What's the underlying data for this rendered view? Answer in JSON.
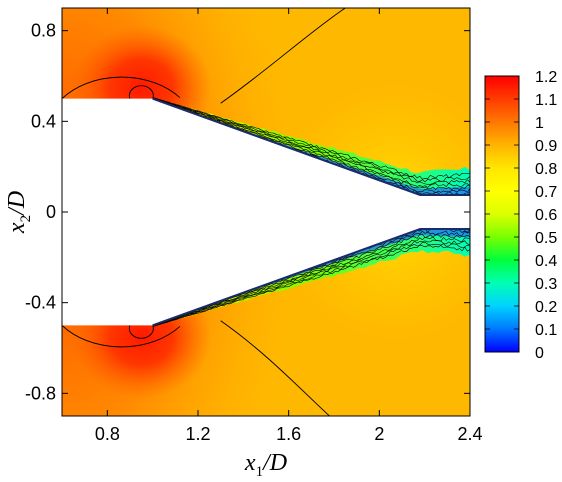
{
  "chart_data": {
    "type": "heatmap",
    "title": "",
    "xlabel": {
      "var": "x",
      "sub": "1",
      "tail": "/D"
    },
    "ylabel": {
      "var": "x",
      "sub": "2",
      "tail": "/D"
    },
    "xlim": [
      0.6,
      2.4
    ],
    "ylim": [
      -0.9,
      0.9
    ],
    "xticks": [
      0.8,
      1.2,
      1.6,
      2.0,
      2.4
    ],
    "xtick_labels": [
      "0.8",
      "1.2",
      "1.6",
      "2",
      "2.4"
    ],
    "yticks": [
      0.8,
      0.4,
      0.0,
      -0.4,
      -0.8
    ],
    "ytick_labels": [
      "0.8",
      "0.4",
      "0",
      "-0.4",
      "-0.8"
    ],
    "colorbar": {
      "min": 0,
      "max": 1.2,
      "levels": [
        "1.2",
        "1.1",
        "1",
        "0.9",
        "0.8",
        "0.7",
        "0.6",
        "0.5",
        "0.4",
        "0.3",
        "0.2",
        "0.1",
        "0"
      ],
      "colormap": [
        "#0000ff",
        "#0078ff",
        "#00d2ff",
        "#00ffb4",
        "#00ff3c",
        "#78ff00",
        "#dcff00",
        "#ffff00",
        "#ffe600",
        "#ffb400",
        "#ff7800",
        "#ff3c00",
        "#ff0000"
      ]
    },
    "solid_body": {
      "upper": [
        [
          0.6,
          0.5
        ],
        [
          1.0,
          0.5
        ],
        [
          2.18,
          0.075
        ],
        [
          2.4,
          0.075
        ]
      ],
      "lower": [
        [
          0.6,
          -0.5
        ],
        [
          1.0,
          -0.5
        ],
        [
          2.18,
          -0.075
        ],
        [
          2.4,
          -0.075
        ]
      ]
    },
    "free_stream_value": 0.95,
    "peak_regions": [
      {
        "center": [
          0.95,
          0.55
        ],
        "value": 1.2
      },
      {
        "center": [
          0.95,
          -0.55
        ],
        "value": 1.2
      }
    ],
    "grid": false,
    "legend": "colorbar-right"
  }
}
